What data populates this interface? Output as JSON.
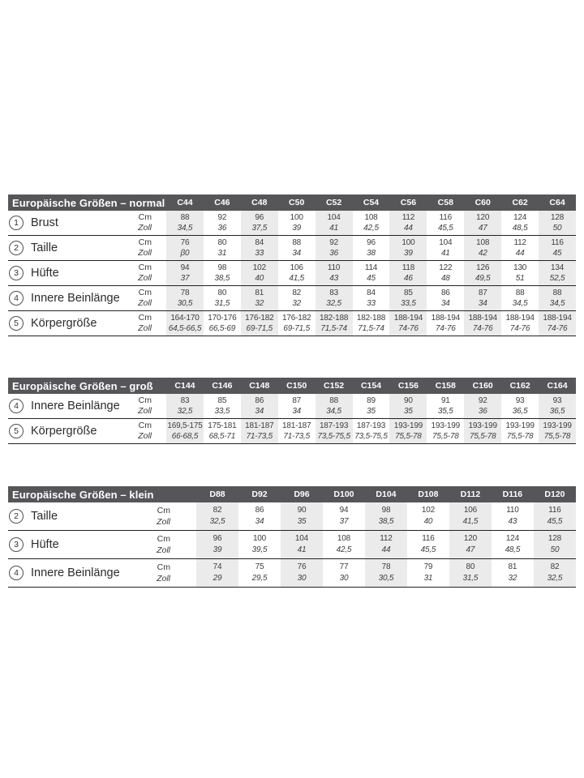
{
  "colors": {
    "header_bg": "#565659",
    "header_text": "#ffffff",
    "stripe": "#ebebeb",
    "rule": "#222222",
    "value_text": "#3d3d3d",
    "label_text": "#2b2b2b",
    "page_bg": "#ffffff"
  },
  "units": {
    "cm": "Cm",
    "zoll": "Zoll"
  },
  "tables": [
    {
      "title": "Europäische Größen – normal",
      "columns": [
        "C44",
        "C46",
        "C48",
        "C50",
        "C52",
        "C54",
        "C56",
        "C58",
        "C60",
        "C62",
        "C64"
      ],
      "rows": [
        {
          "num": "1",
          "label": "Brust",
          "cm": [
            "88",
            "92",
            "96",
            "100",
            "104",
            "108",
            "112",
            "116",
            "120",
            "124",
            "128"
          ],
          "zoll": [
            "34,5",
            "36",
            "37,5",
            "39",
            "41",
            "42,5",
            "44",
            "45,5",
            "47",
            "48,5",
            "50"
          ]
        },
        {
          "num": "2",
          "label": "Taille",
          "cm": [
            "76",
            "80",
            "84",
            "88",
            "92",
            "96",
            "100",
            "104",
            "108",
            "112",
            "116"
          ],
          "zoll": [
            "β0",
            "31",
            "33",
            "34",
            "36",
            "38",
            "39",
            "41",
            "42",
            "44",
            "45"
          ]
        },
        {
          "num": "3",
          "label": "Hüfte",
          "cm": [
            "94",
            "98",
            "102",
            "106",
            "110",
            "114",
            "118",
            "122",
            "126",
            "130",
            "134"
          ],
          "zoll": [
            "37",
            "38,5",
            "40",
            "41,5",
            "43",
            "45",
            "46",
            "48",
            "49,5",
            "51",
            "52,5"
          ]
        },
        {
          "num": "4",
          "label": "Innere Beinlänge",
          "cm": [
            "78",
            "80",
            "81",
            "82",
            "83",
            "84",
            "85",
            "86",
            "87",
            "88",
            "88"
          ],
          "zoll": [
            "30,5",
            "31,5",
            "32",
            "32",
            "32,5",
            "33",
            "33,5",
            "34",
            "34",
            "34,5",
            "34,5"
          ]
        },
        {
          "num": "5",
          "label": "Körpergröße",
          "cm": [
            "164-170",
            "170-176",
            "176-182",
            "176-182",
            "182-188",
            "182-188",
            "188-194",
            "188-194",
            "188-194",
            "188-194",
            "188-194"
          ],
          "zoll": [
            "64,5-66,5",
            "66,5-69",
            "69-71,5",
            "69-71,5",
            "71,5-74",
            "71,5-74",
            "74-76",
            "74-76",
            "74-76",
            "74-76",
            "74-76"
          ]
        }
      ]
    },
    {
      "title": "Europäische Größen – groß",
      "columns": [
        "C144",
        "C146",
        "C148",
        "C150",
        "C152",
        "C154",
        "C156",
        "C158",
        "C160",
        "C162",
        "C164"
      ],
      "rows": [
        {
          "num": "4",
          "label": "Innere Beinlänge",
          "cm": [
            "83",
            "85",
            "86",
            "87",
            "88",
            "89",
            "90",
            "91",
            "92",
            "93",
            "93"
          ],
          "zoll": [
            "32,5",
            "33,5",
            "34",
            "34",
            "34,5",
            "35",
            "35",
            "35,5",
            "36",
            "36,5",
            "36,5"
          ]
        },
        {
          "num": "5",
          "label": "Körpergröße",
          "cm": [
            "169,5-175",
            "175-181",
            "181-187",
            "181-187",
            "187-193",
            "187-193",
            "193-199",
            "193-199",
            "193-199",
            "193-199",
            "193-199"
          ],
          "zoll": [
            "66-68,5",
            "68,5-71",
            "71-73,5",
            "71-73,5",
            "73,5-75,5",
            "73,5-75,5",
            "75,5-78",
            "75,5-78",
            "75,5-78",
            "75,5-78",
            "75,5-78"
          ]
        }
      ]
    },
    {
      "title": "Europäische Größen – klein",
      "columns": [
        "D88",
        "D92",
        "D96",
        "D100",
        "D104",
        "D108",
        "D112",
        "D116",
        "D120"
      ],
      "rows": [
        {
          "num": "2",
          "label": "Taille",
          "cm": [
            "82",
            "86",
            "90",
            "94",
            "98",
            "102",
            "106",
            "110",
            "116"
          ],
          "zoll": [
            "32,5",
            "34",
            "35",
            "37",
            "38,5",
            "40",
            "41,5",
            "43",
            "45,5"
          ]
        },
        {
          "num": "3",
          "label": "Hüfte",
          "cm": [
            "96",
            "100",
            "104",
            "108",
            "112",
            "116",
            "120",
            "124",
            "128"
          ],
          "zoll": [
            "39",
            "39,5",
            "41",
            "42,5",
            "44",
            "45,5",
            "47",
            "48,5",
            "50"
          ]
        },
        {
          "num": "4",
          "label": "Innere Beinlänge",
          "cm": [
            "74",
            "75",
            "76",
            "77",
            "78",
            "79",
            "80",
            "81",
            "82"
          ],
          "zoll": [
            "29",
            "29,5",
            "30",
            "30",
            "30,5",
            "31",
            "31,5",
            "32",
            "32,5"
          ]
        }
      ]
    }
  ]
}
